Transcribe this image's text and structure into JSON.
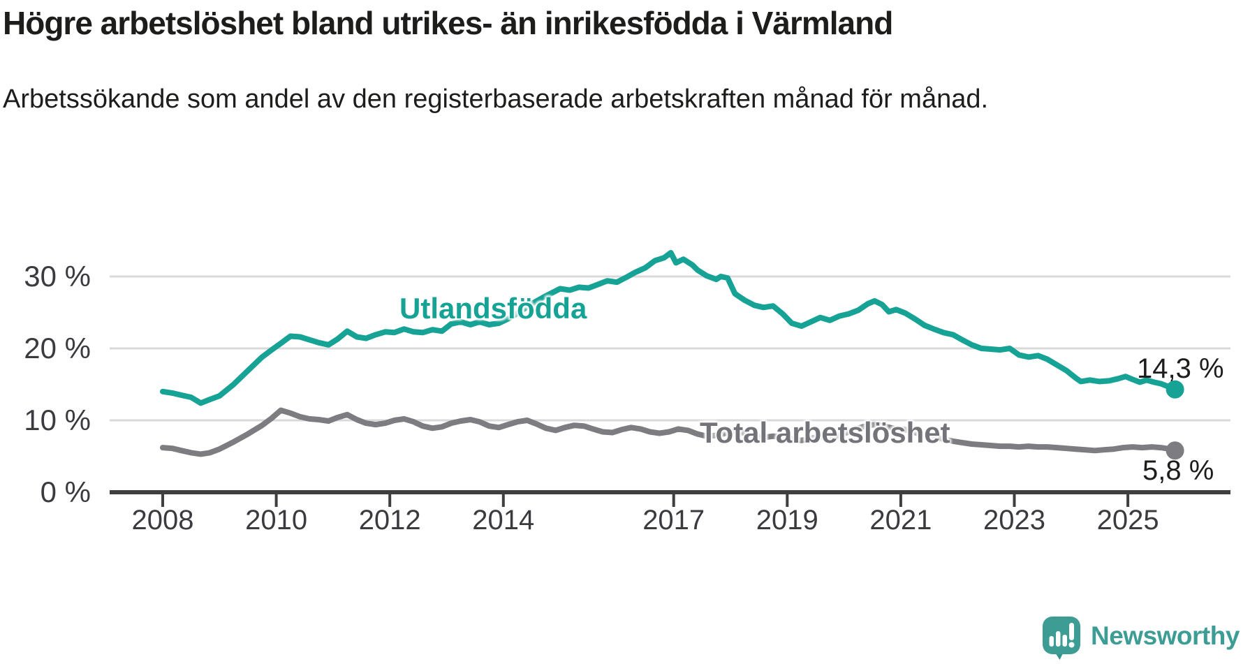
{
  "header": {
    "title": "Högre arbetslöshet bland utrikes- än inrikesfödda i Värmland",
    "subtitle": "Arbetssökande som andel av den registerbaserade arbetskraften månad för månad."
  },
  "footer": {
    "brand": "Newsworthy",
    "logo_icon": "newsworthy-speech-bubble-bar-chart-icon"
  },
  "chart_data": {
    "type": "line",
    "title": "Högre arbetslöshet bland utrikes- än inrikesfödda i Värmland",
    "subtitle": "Arbetssökande som andel av den registerbaserade arbetskraften månad för månad.",
    "xlabel": "",
    "ylabel": "",
    "grid": "horizontal",
    "grid_color": "#d9d9d9",
    "axis_color": "#3f3f3f",
    "tick_label_color": "#3b3b3f",
    "xlim": [
      2007.1,
      2026.4
    ],
    "ylim": [
      0,
      34
    ],
    "x_ticks": [
      {
        "label": "2008",
        "value": 2008
      },
      {
        "label": "2010",
        "value": 2010
      },
      {
        "label": "2012",
        "value": 2012
      },
      {
        "label": "2014",
        "value": 2014
      },
      {
        "label": "2017",
        "value": 2017
      },
      {
        "label": "2019",
        "value": 2019
      },
      {
        "label": "2021",
        "value": 2021
      },
      {
        "label": "2023",
        "value": 2023
      },
      {
        "label": "2025",
        "value": 2025
      }
    ],
    "y_ticks": [
      {
        "label": "0 %",
        "value": 0
      },
      {
        "label": "10 %",
        "value": 10
      },
      {
        "label": "20 %",
        "value": 20
      },
      {
        "label": "30 %",
        "value": 30
      }
    ],
    "legend_position": "inline-labels",
    "series": [
      {
        "name": "Utlandsfödda",
        "color": "#16a295",
        "end_label": "14,3 %",
        "last_value": 14.3,
        "points": [
          [
            2008.0,
            14.0
          ],
          [
            2008.17,
            13.8
          ],
          [
            2008.33,
            13.5
          ],
          [
            2008.5,
            13.2
          ],
          [
            2008.67,
            12.4
          ],
          [
            2008.83,
            12.9
          ],
          [
            2009.0,
            13.4
          ],
          [
            2009.25,
            15.0
          ],
          [
            2009.5,
            16.9
          ],
          [
            2009.75,
            18.8
          ],
          [
            2009.92,
            19.8
          ],
          [
            2010.08,
            20.7
          ],
          [
            2010.25,
            21.7
          ],
          [
            2010.42,
            21.6
          ],
          [
            2010.58,
            21.2
          ],
          [
            2010.75,
            20.8
          ],
          [
            2010.92,
            20.5
          ],
          [
            2011.08,
            21.3
          ],
          [
            2011.25,
            22.4
          ],
          [
            2011.42,
            21.6
          ],
          [
            2011.58,
            21.4
          ],
          [
            2011.75,
            21.9
          ],
          [
            2011.92,
            22.3
          ],
          [
            2012.08,
            22.2
          ],
          [
            2012.25,
            22.7
          ],
          [
            2012.42,
            22.3
          ],
          [
            2012.58,
            22.2
          ],
          [
            2012.75,
            22.6
          ],
          [
            2012.92,
            22.4
          ],
          [
            2013.08,
            23.4
          ],
          [
            2013.25,
            23.7
          ],
          [
            2013.42,
            23.3
          ],
          [
            2013.58,
            23.7
          ],
          [
            2013.75,
            23.3
          ],
          [
            2013.92,
            23.5
          ],
          [
            2014.08,
            24.1
          ],
          [
            2014.25,
            24.9
          ],
          [
            2014.5,
            26.2
          ],
          [
            2014.75,
            27.3
          ],
          [
            2015.0,
            28.3
          ],
          [
            2015.17,
            28.1
          ],
          [
            2015.33,
            28.5
          ],
          [
            2015.5,
            28.4
          ],
          [
            2015.67,
            28.9
          ],
          [
            2015.83,
            29.4
          ],
          [
            2016.0,
            29.2
          ],
          [
            2016.17,
            29.9
          ],
          [
            2016.33,
            30.6
          ],
          [
            2016.5,
            31.2
          ],
          [
            2016.67,
            32.2
          ],
          [
            2016.83,
            32.6
          ],
          [
            2016.95,
            33.3
          ],
          [
            2017.04,
            31.9
          ],
          [
            2017.17,
            32.4
          ],
          [
            2017.33,
            31.6
          ],
          [
            2017.42,
            30.9
          ],
          [
            2017.58,
            30.1
          ],
          [
            2017.75,
            29.6
          ],
          [
            2017.83,
            30.0
          ],
          [
            2017.95,
            29.8
          ],
          [
            2018.08,
            27.6
          ],
          [
            2018.25,
            26.7
          ],
          [
            2018.42,
            26.0
          ],
          [
            2018.58,
            25.7
          ],
          [
            2018.75,
            25.9
          ],
          [
            2018.92,
            24.8
          ],
          [
            2019.08,
            23.5
          ],
          [
            2019.25,
            23.1
          ],
          [
            2019.42,
            23.7
          ],
          [
            2019.58,
            24.3
          ],
          [
            2019.75,
            23.9
          ],
          [
            2019.92,
            24.5
          ],
          [
            2020.08,
            24.8
          ],
          [
            2020.25,
            25.3
          ],
          [
            2020.42,
            26.2
          ],
          [
            2020.54,
            26.6
          ],
          [
            2020.67,
            26.1
          ],
          [
            2020.79,
            25.1
          ],
          [
            2020.92,
            25.4
          ],
          [
            2021.08,
            24.9
          ],
          [
            2021.25,
            24.1
          ],
          [
            2021.42,
            23.2
          ],
          [
            2021.58,
            22.7
          ],
          [
            2021.75,
            22.2
          ],
          [
            2021.92,
            21.9
          ],
          [
            2022.08,
            21.2
          ],
          [
            2022.25,
            20.5
          ],
          [
            2022.42,
            20.0
          ],
          [
            2022.58,
            19.9
          ],
          [
            2022.75,
            19.8
          ],
          [
            2022.92,
            20.0
          ],
          [
            2023.08,
            19.1
          ],
          [
            2023.25,
            18.8
          ],
          [
            2023.42,
            19.0
          ],
          [
            2023.58,
            18.5
          ],
          [
            2023.75,
            17.7
          ],
          [
            2023.92,
            16.9
          ],
          [
            2024.08,
            15.9
          ],
          [
            2024.17,
            15.4
          ],
          [
            2024.33,
            15.6
          ],
          [
            2024.5,
            15.4
          ],
          [
            2024.67,
            15.5
          ],
          [
            2024.83,
            15.8
          ],
          [
            2024.96,
            16.1
          ],
          [
            2025.08,
            15.7
          ],
          [
            2025.21,
            15.3
          ],
          [
            2025.33,
            15.6
          ],
          [
            2025.46,
            15.3
          ],
          [
            2025.58,
            15.1
          ],
          [
            2025.71,
            14.7
          ],
          [
            2025.83,
            14.3
          ]
        ]
      },
      {
        "name": "Total arbetslöshet",
        "color": "#7d7d81",
        "end_label": "5,8 %",
        "last_value": 5.8,
        "points": [
          [
            2008.0,
            6.2
          ],
          [
            2008.17,
            6.1
          ],
          [
            2008.33,
            5.8
          ],
          [
            2008.5,
            5.5
          ],
          [
            2008.67,
            5.3
          ],
          [
            2008.83,
            5.5
          ],
          [
            2009.0,
            6.0
          ],
          [
            2009.25,
            7.0
          ],
          [
            2009.5,
            8.1
          ],
          [
            2009.75,
            9.3
          ],
          [
            2009.92,
            10.3
          ],
          [
            2010.08,
            11.4
          ],
          [
            2010.25,
            11.0
          ],
          [
            2010.42,
            10.5
          ],
          [
            2010.58,
            10.2
          ],
          [
            2010.75,
            10.1
          ],
          [
            2010.92,
            9.9
          ],
          [
            2011.08,
            10.4
          ],
          [
            2011.25,
            10.8
          ],
          [
            2011.42,
            10.1
          ],
          [
            2011.58,
            9.6
          ],
          [
            2011.75,
            9.4
          ],
          [
            2011.92,
            9.6
          ],
          [
            2012.08,
            10.0
          ],
          [
            2012.25,
            10.2
          ],
          [
            2012.42,
            9.8
          ],
          [
            2012.58,
            9.2
          ],
          [
            2012.75,
            8.9
          ],
          [
            2012.92,
            9.1
          ],
          [
            2013.08,
            9.6
          ],
          [
            2013.25,
            9.9
          ],
          [
            2013.42,
            10.1
          ],
          [
            2013.58,
            9.8
          ],
          [
            2013.75,
            9.2
          ],
          [
            2013.92,
            9.0
          ],
          [
            2014.08,
            9.4
          ],
          [
            2014.25,
            9.8
          ],
          [
            2014.42,
            10.0
          ],
          [
            2014.58,
            9.5
          ],
          [
            2014.75,
            8.9
          ],
          [
            2014.92,
            8.6
          ],
          [
            2015.08,
            9.0
          ],
          [
            2015.25,
            9.3
          ],
          [
            2015.42,
            9.2
          ],
          [
            2015.58,
            8.8
          ],
          [
            2015.75,
            8.4
          ],
          [
            2015.92,
            8.3
          ],
          [
            2016.08,
            8.7
          ],
          [
            2016.25,
            9.0
          ],
          [
            2016.42,
            8.8
          ],
          [
            2016.58,
            8.4
          ],
          [
            2016.75,
            8.2
          ],
          [
            2016.92,
            8.4
          ],
          [
            2017.08,
            8.8
          ],
          [
            2017.25,
            8.6
          ],
          [
            2017.42,
            8.1
          ],
          [
            2017.58,
            7.8
          ],
          [
            2017.75,
            7.9
          ],
          [
            2017.92,
            8.2
          ],
          [
            2018.08,
            8.5
          ],
          [
            2018.25,
            8.2
          ],
          [
            2018.42,
            7.8
          ],
          [
            2018.58,
            7.6
          ],
          [
            2018.75,
            7.8
          ],
          [
            2018.92,
            7.7
          ],
          [
            2019.08,
            7.4
          ],
          [
            2019.25,
            7.2
          ],
          [
            2019.42,
            7.5
          ],
          [
            2019.58,
            7.7
          ],
          [
            2019.75,
            7.6
          ],
          [
            2019.92,
            7.9
          ],
          [
            2020.08,
            8.4
          ],
          [
            2020.25,
            8.9
          ],
          [
            2020.42,
            9.3
          ],
          [
            2020.58,
            9.4
          ],
          [
            2020.75,
            9.1
          ],
          [
            2020.92,
            8.8
          ],
          [
            2021.08,
            8.7
          ],
          [
            2021.25,
            8.3
          ],
          [
            2021.42,
            7.9
          ],
          [
            2021.58,
            7.7
          ],
          [
            2021.75,
            7.4
          ],
          [
            2021.92,
            7.1
          ],
          [
            2022.08,
            6.9
          ],
          [
            2022.25,
            6.7
          ],
          [
            2022.42,
            6.6
          ],
          [
            2022.58,
            6.5
          ],
          [
            2022.75,
            6.4
          ],
          [
            2022.92,
            6.4
          ],
          [
            2023.08,
            6.3
          ],
          [
            2023.25,
            6.4
          ],
          [
            2023.42,
            6.3
          ],
          [
            2023.58,
            6.3
          ],
          [
            2023.75,
            6.2
          ],
          [
            2023.92,
            6.1
          ],
          [
            2024.08,
            6.0
          ],
          [
            2024.25,
            5.9
          ],
          [
            2024.42,
            5.8
          ],
          [
            2024.58,
            5.9
          ],
          [
            2024.75,
            6.0
          ],
          [
            2024.92,
            6.2
          ],
          [
            2025.08,
            6.3
          ],
          [
            2025.25,
            6.2
          ],
          [
            2025.42,
            6.3
          ],
          [
            2025.58,
            6.2
          ],
          [
            2025.75,
            6.0
          ],
          [
            2025.83,
            5.8
          ]
        ]
      }
    ]
  }
}
